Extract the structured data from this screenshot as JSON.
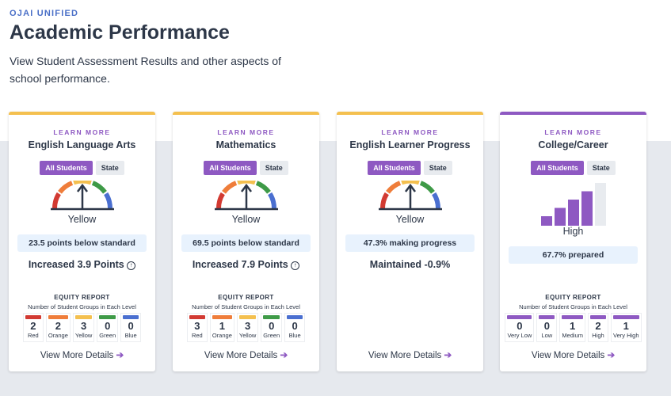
{
  "header": {
    "district": "OJAI UNIFIED",
    "title": "Academic Performance",
    "description": "View Student Assessment Results and other aspects of school performance."
  },
  "colors": {
    "red": "#d23a32",
    "orange": "#ef7d3a",
    "yellow": "#f4c04f",
    "green": "#3e9a47",
    "blue": "#4a6fd0",
    "purple": "#8e59c2"
  },
  "cards": [
    {
      "learn_more": "LEARN MORE",
      "title": "English Language Arts",
      "toggle": [
        "All Students",
        "State"
      ],
      "level": "Yellow",
      "status": "23.5 points below standard",
      "change": "Increased 3.9 Points",
      "change_icon": "arrow-up-circle-icon",
      "equity": {
        "heading": "EQUITY REPORT",
        "subheading": "Number of Student Groups in Each Level",
        "levels": [
          {
            "label": "Red",
            "count": "2"
          },
          {
            "label": "Orange",
            "count": "2"
          },
          {
            "label": "Yellow",
            "count": "3"
          },
          {
            "label": "Green",
            "count": "0"
          },
          {
            "label": "Blue",
            "count": "0"
          }
        ]
      },
      "details": "View More Details"
    },
    {
      "learn_more": "LEARN MORE",
      "title": "Mathematics",
      "toggle": [
        "All Students",
        "State"
      ],
      "level": "Yellow",
      "status": "69.5 points below standard",
      "change": "Increased 7.9 Points",
      "change_icon": "arrow-up-circle-icon",
      "equity": {
        "heading": "EQUITY REPORT",
        "subheading": "Number of Student Groups in Each Level",
        "levels": [
          {
            "label": "Red",
            "count": "3"
          },
          {
            "label": "Orange",
            "count": "1"
          },
          {
            "label": "Yellow",
            "count": "3"
          },
          {
            "label": "Green",
            "count": "0"
          },
          {
            "label": "Blue",
            "count": "0"
          }
        ]
      },
      "details": "View More Details"
    },
    {
      "learn_more": "LEARN MORE",
      "title": "English Learner Progress",
      "toggle": [
        "All Students",
        "State"
      ],
      "level": "Yellow",
      "status": "47.3% making progress",
      "change": "Maintained -0.9%",
      "details": "View More Details"
    },
    {
      "learn_more": "LEARN MORE",
      "title": "College/Career",
      "toggle": [
        "All Students",
        "State"
      ],
      "level": "High",
      "level_rank": 4,
      "level_count": 5,
      "status": "67.7% prepared",
      "equity": {
        "heading": "EQUITY REPORT",
        "subheading": "Number of Student Groups in Each Level",
        "levels": [
          {
            "label": "Very Low",
            "count": "0"
          },
          {
            "label": "Low",
            "count": "0"
          },
          {
            "label": "Medium",
            "count": "1"
          },
          {
            "label": "High",
            "count": "2"
          },
          {
            "label": "Very High",
            "count": "1"
          }
        ]
      },
      "details": "View More Details"
    }
  ]
}
